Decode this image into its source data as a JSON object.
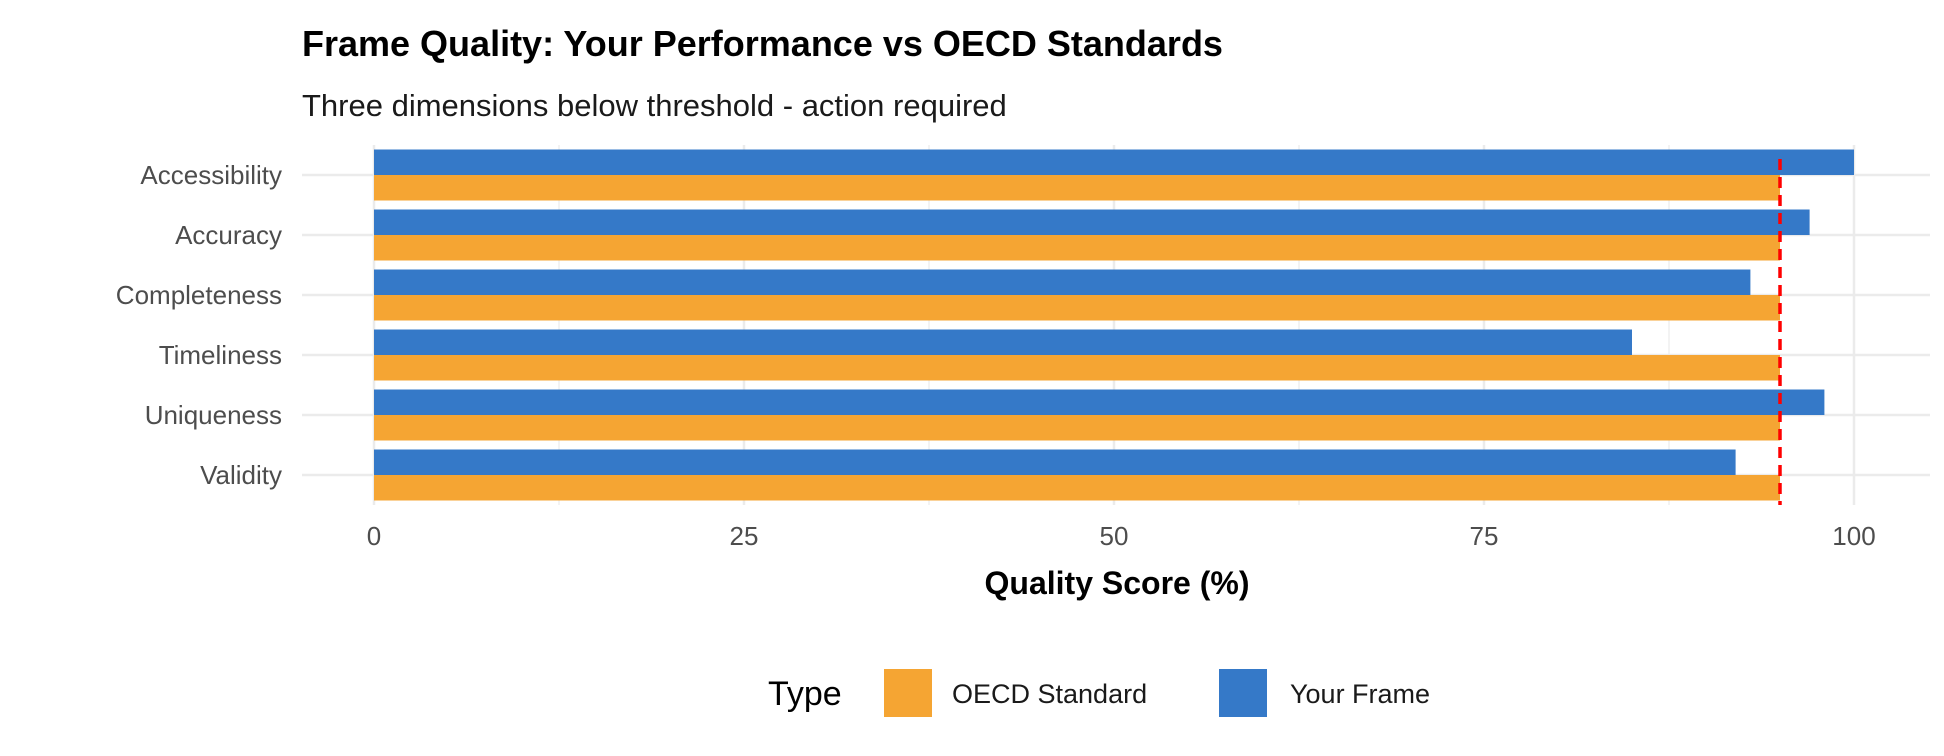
{
  "chart_data": {
    "type": "bar",
    "orientation": "horizontal",
    "title": "Frame Quality: Your Performance vs OECD Standards",
    "subtitle": "Three dimensions below threshold - action required",
    "xlabel": "Quality Score (%)",
    "ylabel": "",
    "xlim": [
      0,
      100
    ],
    "xticks": [
      0,
      25,
      50,
      75,
      100
    ],
    "categories": [
      "Validity",
      "Uniqueness",
      "Timeliness",
      "Completeness",
      "Accuracy",
      "Accessibility"
    ],
    "series": [
      {
        "name": "OECD Standard",
        "color": "#F5A533",
        "values": [
          95,
          95,
          95,
          95,
          95,
          95
        ]
      },
      {
        "name": "Your Frame",
        "color": "#3579C8",
        "values": [
          92,
          98,
          85,
          93,
          97,
          100
        ]
      }
    ],
    "reference_line": {
      "value": 95,
      "color": "#FF0000",
      "style": "dashed"
    },
    "legend": {
      "title": "Type",
      "position": "bottom"
    },
    "grid": true
  }
}
